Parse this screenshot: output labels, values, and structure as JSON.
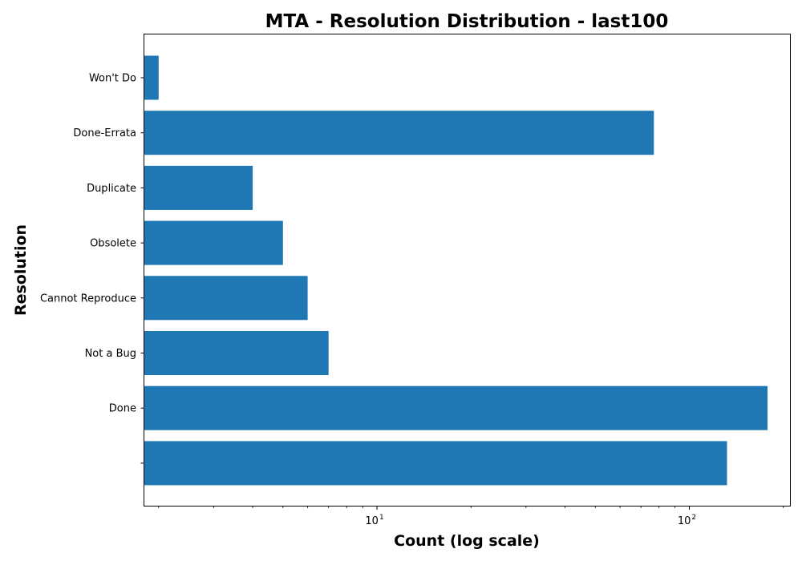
{
  "chart_data": {
    "type": "bar",
    "orientation": "horizontal",
    "title": "MTA - Resolution Distribution - last100",
    "xlabel": "Count (log scale)",
    "ylabel": "Resolution",
    "xscale": "log",
    "xlim": [
      1.8,
      210
    ],
    "x_ticks": [
      {
        "base": "10",
        "exp": "1",
        "value": 10
      },
      {
        "base": "10",
        "exp": "2",
        "value": 100
      }
    ],
    "categories": [
      "Won't Do",
      "Done-Errata",
      "Duplicate",
      "Obsolete",
      "Cannot Reproduce",
      "Not a Bug",
      "Done",
      ""
    ],
    "values": [
      2,
      77,
      4,
      5,
      6,
      7,
      178,
      132
    ],
    "bar_color": "#1f77b4",
    "grid": false
  }
}
